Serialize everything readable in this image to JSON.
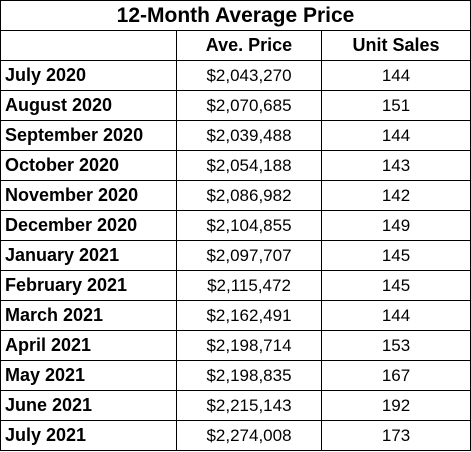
{
  "chart_data": {
    "type": "table",
    "title": "12-Month Average Price",
    "columns": [
      "",
      "Ave. Price",
      "Unit Sales"
    ],
    "rows": [
      {
        "month": "July 2020",
        "price": "$2,043,270",
        "sales": "144"
      },
      {
        "month": "August 2020",
        "price": "$2,070,685",
        "sales": "151"
      },
      {
        "month": "September 2020",
        "price": "$2,039,488",
        "sales": "144"
      },
      {
        "month": "October 2020",
        "price": "$2,054,188",
        "sales": "143"
      },
      {
        "month": "November 2020",
        "price": "$2,086,982",
        "sales": "142"
      },
      {
        "month": "December 2020",
        "price": "$2,104,855",
        "sales": "149"
      },
      {
        "month": "January 2021",
        "price": "$2,097,707",
        "sales": "145"
      },
      {
        "month": "February 2021",
        "price": "$2,115,472",
        "sales": "145"
      },
      {
        "month": "March 2021",
        "price": "$2,162,491",
        "sales": "144"
      },
      {
        "month": "April 2021",
        "price": "$2,198,714",
        "sales": "153"
      },
      {
        "month": "May 2021",
        "price": "$2,198,835",
        "sales": "167"
      },
      {
        "month": "June 2021",
        "price": "$2,215,143",
        "sales": "192"
      },
      {
        "month": "July 2021",
        "price": "$2,274,008",
        "sales": "173"
      }
    ]
  }
}
